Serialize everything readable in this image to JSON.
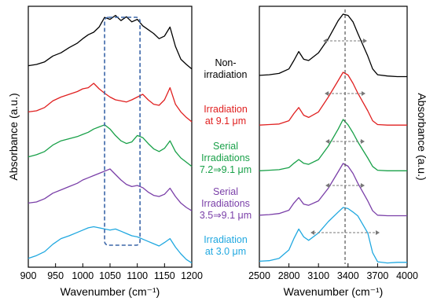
{
  "chart_data": [
    {
      "type": "line",
      "panel": "left",
      "xlabel": "Wavenumber (cm⁻¹)",
      "ylabel": "Absorbance (a.u.)",
      "xlim": [
        900,
        1200
      ],
      "x_ticks": [
        "900",
        "950",
        "1000",
        "1050",
        "1100",
        "1150",
        "1200"
      ],
      "x_tick_values": [
        900,
        950,
        1000,
        1050,
        1100,
        1150,
        1200
      ],
      "y_ticks": "none",
      "grid": false,
      "highlight_box": {
        "x_range": [
          1040,
          1105
        ],
        "style": "dashed"
      },
      "series": [
        {
          "name": "Non-irradiation",
          "color": "#000000",
          "x": [
            900,
            915,
            930,
            945,
            960,
            975,
            990,
            1000,
            1010,
            1020,
            1030,
            1040,
            1050,
            1060,
            1070,
            1080,
            1090,
            1100,
            1110,
            1120,
            1130,
            1140,
            1150,
            1160,
            1170,
            1180,
            1190,
            1200
          ],
          "y": [
            0.2,
            0.22,
            0.26,
            0.35,
            0.4,
            0.48,
            0.55,
            0.62,
            0.68,
            0.72,
            0.8,
            0.95,
            0.92,
            0.98,
            0.9,
            0.96,
            0.88,
            0.92,
            0.82,
            0.76,
            0.7,
            0.62,
            0.66,
            0.8,
            0.5,
            0.3,
            0.22,
            0.15
          ]
        },
        {
          "name": "Irradiation at 9.1 μm",
          "color": "#e02020",
          "x": [
            900,
            915,
            930,
            945,
            960,
            975,
            990,
            1000,
            1010,
            1020,
            1030,
            1040,
            1050,
            1060,
            1070,
            1080,
            1090,
            1100,
            1110,
            1120,
            1130,
            1140,
            1150,
            1160,
            1170,
            1180,
            1190,
            1200
          ],
          "y": [
            0.28,
            0.3,
            0.36,
            0.48,
            0.55,
            0.6,
            0.65,
            0.7,
            0.72,
            0.8,
            0.7,
            0.62,
            0.55,
            0.5,
            0.48,
            0.46,
            0.5,
            0.55,
            0.6,
            0.5,
            0.42,
            0.4,
            0.5,
            0.72,
            0.42,
            0.28,
            0.18,
            0.1
          ]
        },
        {
          "name": "Serial Irradiations 7.2⇒9.1 μm",
          "color": "#18a048",
          "x": [
            900,
            915,
            930,
            945,
            960,
            975,
            990,
            1000,
            1010,
            1020,
            1030,
            1040,
            1050,
            1060,
            1070,
            1080,
            1090,
            1100,
            1110,
            1120,
            1130,
            1140,
            1150,
            1160,
            1170,
            1180,
            1190,
            1200
          ],
          "y": [
            0.3,
            0.34,
            0.4,
            0.52,
            0.6,
            0.64,
            0.68,
            0.72,
            0.76,
            0.82,
            0.86,
            0.9,
            0.82,
            0.7,
            0.6,
            0.55,
            0.58,
            0.7,
            0.66,
            0.55,
            0.45,
            0.4,
            0.46,
            0.6,
            0.4,
            0.28,
            0.2,
            0.12
          ]
        },
        {
          "name": "Serial Irradiations 3.5⇒9.1 μm",
          "color": "#7a3fa8",
          "x": [
            900,
            915,
            930,
            945,
            960,
            975,
            990,
            1000,
            1010,
            1020,
            1030,
            1040,
            1050,
            1060,
            1070,
            1080,
            1090,
            1100,
            1110,
            1120,
            1130,
            1140,
            1150,
            1160,
            1170,
            1180,
            1190,
            1200
          ],
          "y": [
            0.28,
            0.3,
            0.36,
            0.46,
            0.52,
            0.58,
            0.64,
            0.7,
            0.74,
            0.78,
            0.82,
            0.86,
            0.9,
            0.8,
            0.7,
            0.62,
            0.58,
            0.6,
            0.56,
            0.48,
            0.42,
            0.4,
            0.44,
            0.55,
            0.4,
            0.28,
            0.2,
            0.14
          ]
        },
        {
          "name": "Irradiation at 3.0 μm",
          "color": "#20a8e0",
          "x": [
            900,
            915,
            930,
            945,
            960,
            975,
            990,
            1000,
            1010,
            1020,
            1030,
            1040,
            1050,
            1060,
            1070,
            1080,
            1090,
            1100,
            1110,
            1120,
            1130,
            1140,
            1150,
            1160,
            1170,
            1180,
            1190,
            1200
          ],
          "y": [
            0.1,
            0.15,
            0.22,
            0.35,
            0.45,
            0.5,
            0.56,
            0.6,
            0.64,
            0.66,
            0.64,
            0.62,
            0.6,
            0.62,
            0.58,
            0.54,
            0.5,
            0.48,
            0.44,
            0.4,
            0.36,
            0.32,
            0.38,
            0.45,
            0.3,
            0.18,
            0.08,
            0.02
          ]
        }
      ]
    },
    {
      "type": "line",
      "panel": "right",
      "xlabel": "Wavenumber (cm⁻¹)",
      "ylabel": "Absorbance (a.u.)",
      "xlim": [
        2500,
        4000
      ],
      "x_ticks": [
        "2500",
        "2800",
        "3100",
        "3400",
        "3700",
        "4000"
      ],
      "x_tick_values": [
        2500,
        2800,
        3100,
        3400,
        3700,
        4000
      ],
      "y_ticks": "none",
      "grid": false,
      "reference_line": {
        "x": 3370,
        "style": "dashed"
      },
      "series": [
        {
          "name": "Non-irradiation",
          "color": "#000000",
          "x": [
            2500,
            2600,
            2700,
            2800,
            2850,
            2900,
            2950,
            3000,
            3100,
            3200,
            3300,
            3350,
            3400,
            3450,
            3500,
            3600,
            3650,
            3700,
            3800,
            3900,
            4000
          ],
          "y": [
            0.05,
            0.06,
            0.08,
            0.15,
            0.28,
            0.42,
            0.3,
            0.28,
            0.4,
            0.62,
            0.9,
            1.0,
            0.98,
            0.88,
            0.7,
            0.35,
            0.15,
            0.06,
            0.04,
            0.03,
            0.03
          ]
        },
        {
          "name": "Irradiation at 9.1 μm",
          "color": "#e02020",
          "x": [
            2500,
            2600,
            2700,
            2800,
            2850,
            2900,
            2950,
            3000,
            3100,
            3200,
            3300,
            3350,
            3400,
            3450,
            3500,
            3600,
            3650,
            3700,
            3800,
            3900,
            4000
          ],
          "y": [
            0.04,
            0.05,
            0.06,
            0.12,
            0.25,
            0.36,
            0.22,
            0.18,
            0.28,
            0.55,
            0.85,
            1.0,
            0.95,
            0.8,
            0.62,
            0.3,
            0.12,
            0.05,
            0.04,
            0.04,
            0.04
          ]
        },
        {
          "name": "Serial Irradiations 7.2⇒9.1 μm",
          "color": "#18a048",
          "x": [
            2500,
            2600,
            2700,
            2800,
            2850,
            2900,
            2950,
            3000,
            3100,
            3200,
            3300,
            3350,
            3400,
            3450,
            3500,
            3600,
            3650,
            3700,
            3800,
            3900,
            4000
          ],
          "y": [
            0.04,
            0.05,
            0.06,
            0.1,
            0.18,
            0.25,
            0.18,
            0.16,
            0.25,
            0.5,
            0.82,
            1.0,
            0.9,
            0.75,
            0.58,
            0.28,
            0.12,
            0.05,
            0.04,
            0.04,
            0.04
          ]
        },
        {
          "name": "Serial Irradiations 3.5⇒9.1 μm",
          "color": "#7a3fa8",
          "x": [
            2500,
            2600,
            2700,
            2800,
            2850,
            2900,
            2950,
            3000,
            3100,
            3200,
            3300,
            3350,
            3400,
            3450,
            3500,
            3600,
            3650,
            3700,
            3800,
            3900,
            4000
          ],
          "y": [
            0.06,
            0.07,
            0.09,
            0.15,
            0.28,
            0.38,
            0.26,
            0.24,
            0.32,
            0.55,
            0.85,
            1.0,
            0.95,
            0.82,
            0.64,
            0.32,
            0.14,
            0.06,
            0.05,
            0.05,
            0.05
          ]
        },
        {
          "name": "Irradiation at 3.0 μm",
          "color": "#20a8e0",
          "x": [
            2500,
            2600,
            2700,
            2800,
            2850,
            2900,
            2950,
            3000,
            3100,
            3200,
            3300,
            3350,
            3400,
            3450,
            3500,
            3600,
            3650,
            3700,
            3800,
            3900,
            4000
          ],
          "y": [
            0.05,
            0.06,
            0.1,
            0.25,
            0.45,
            0.62,
            0.48,
            0.42,
            0.55,
            0.75,
            0.92,
            1.0,
            0.98,
            0.92,
            0.85,
            0.55,
            0.2,
            0.04,
            0.02,
            0.03,
            0.03
          ]
        }
      ]
    }
  ],
  "legend": [
    {
      "lines": [
        "Non-",
        "irradiation"
      ],
      "color": "#000000"
    },
    {
      "lines": [
        "Irradiation",
        "at 9.1 μm"
      ],
      "color": "#e02020"
    },
    {
      "lines": [
        "Serial",
        "Irradiations",
        "7.2⇒9.1 μm"
      ],
      "color": "#18a048"
    },
    {
      "lines": [
        "Serial",
        "Irradiations",
        "3.5⇒9.1 μm"
      ],
      "color": "#7a3fa8"
    },
    {
      "lines": [
        "Irradiation",
        "at 3.0 μm"
      ],
      "color": "#20a8e0"
    }
  ]
}
